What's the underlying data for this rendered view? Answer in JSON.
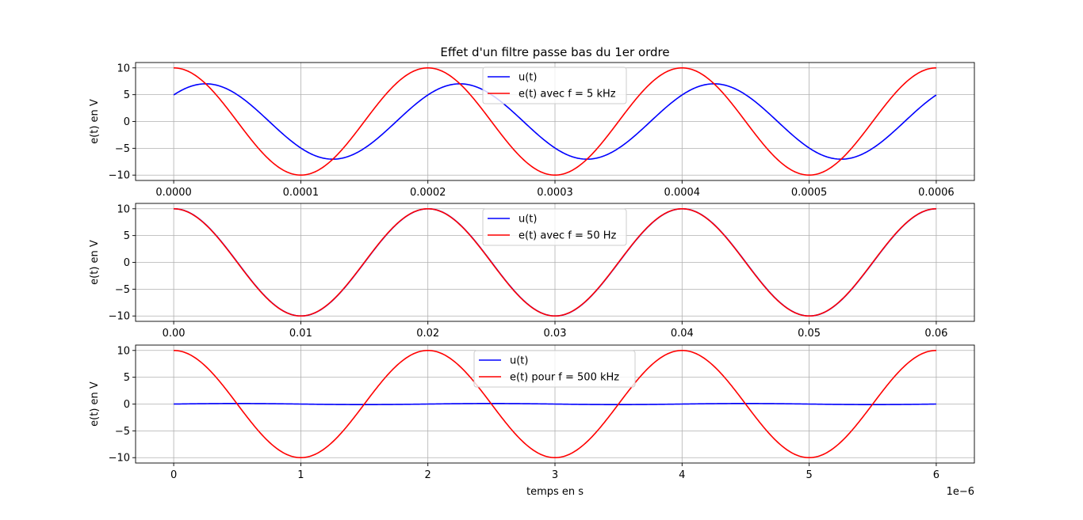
{
  "chart_data": [
    {
      "type": "line",
      "title": "Effet d'un filtre passe bas du 1er ordre",
      "ylabel": "e(t) en V",
      "xlabel": "",
      "x_offset_label": "",
      "xlim": [
        -3e-05,
        0.00063
      ],
      "ylim": [
        -11,
        11
      ],
      "xticks": [
        0,
        0.0001,
        0.0002,
        0.0003,
        0.0004,
        0.0005,
        0.0006
      ],
      "xtick_labels": [
        "0.0000",
        "0.0001",
        "0.0002",
        "0.0003",
        "0.0004",
        "0.0005",
        "0.0006"
      ],
      "yticks": [
        -10,
        -5,
        0,
        5,
        10
      ],
      "ytick_labels": [
        "−10",
        "−5",
        "0",
        "5",
        "10"
      ],
      "grid": true,
      "legend_position": "top-center",
      "x_range": [
        0,
        0.0006
      ],
      "series": [
        {
          "name": "u(t)",
          "color": "#0000ff",
          "amplitude": 7.03,
          "frequency": 5000,
          "phase_deg": -45.3
        },
        {
          "name": "e(t) avec f = 5 kHz",
          "color": "#ff0000",
          "amplitude": 10,
          "frequency": 5000,
          "phase_deg": 0
        }
      ]
    },
    {
      "type": "line",
      "title": "",
      "ylabel": "e(t) en V",
      "xlabel": "",
      "x_offset_label": "",
      "xlim": [
        -0.003,
        0.063
      ],
      "ylim": [
        -11,
        11
      ],
      "xticks": [
        0,
        0.01,
        0.02,
        0.03,
        0.04,
        0.05,
        0.06
      ],
      "xtick_labels": [
        "0.00",
        "0.01",
        "0.02",
        "0.03",
        "0.04",
        "0.05",
        "0.06"
      ],
      "yticks": [
        -10,
        -5,
        0,
        5,
        10
      ],
      "ytick_labels": [
        "−10",
        "−5",
        "0",
        "5",
        "10"
      ],
      "grid": true,
      "legend_position": "top-center",
      "x_range": [
        0,
        0.06
      ],
      "series": [
        {
          "name": "u(t)",
          "color": "#0000ff",
          "amplitude": 10,
          "frequency": 50,
          "phase_deg": -0.3
        },
        {
          "name": "e(t) avec f = 50 Hz",
          "color": "#ff0000",
          "amplitude": 10,
          "frequency": 50,
          "phase_deg": 0
        }
      ]
    },
    {
      "type": "line",
      "title": "",
      "ylabel": "e(t) en V",
      "xlabel": "temps en s",
      "x_offset_label": "1e−6",
      "xlim": [
        -0.3,
        6.3
      ],
      "ylim": [
        -11,
        11
      ],
      "xticks": [
        0,
        1,
        2,
        3,
        4,
        5,
        6
      ],
      "xtick_labels": [
        "0",
        "1",
        "2",
        "3",
        "4",
        "5",
        "6"
      ],
      "yticks": [
        -10,
        -5,
        0,
        5,
        10
      ],
      "ytick_labels": [
        "−10",
        "−5",
        "0",
        "5",
        "10"
      ],
      "grid": true,
      "legend_position": "top-center",
      "x_range": [
        0,
        6
      ],
      "series": [
        {
          "name": "u(t)",
          "color": "#0000ff",
          "amplitude": 0.1,
          "frequency": 0.5,
          "phase_deg": -89.4
        },
        {
          "name": "e(t)  pour f = 500 kHz",
          "color": "#ff0000",
          "amplitude": 10,
          "frequency": 0.5,
          "phase_deg": 0
        }
      ]
    }
  ]
}
